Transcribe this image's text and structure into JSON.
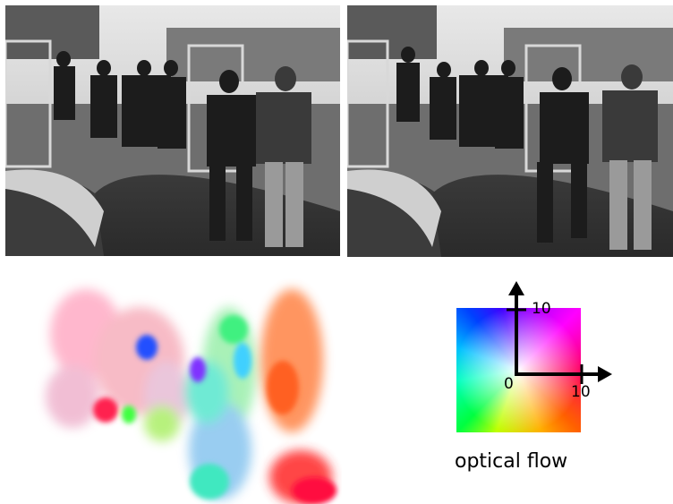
{
  "panels": {
    "frame_1": {
      "kind": "grayscale video frame",
      "subject": "group of people walking along a path"
    },
    "frame_2": {
      "kind": "grayscale video frame",
      "subject": "next frame of the same scene"
    },
    "flow": {
      "kind": "optical flow color visualization"
    }
  },
  "legend": {
    "y_tick": "10",
    "origin": "0",
    "x_tick": "10",
    "caption": "optical flow"
  },
  "icons": [
    "arrow-up-icon",
    "arrow-right-icon"
  ]
}
